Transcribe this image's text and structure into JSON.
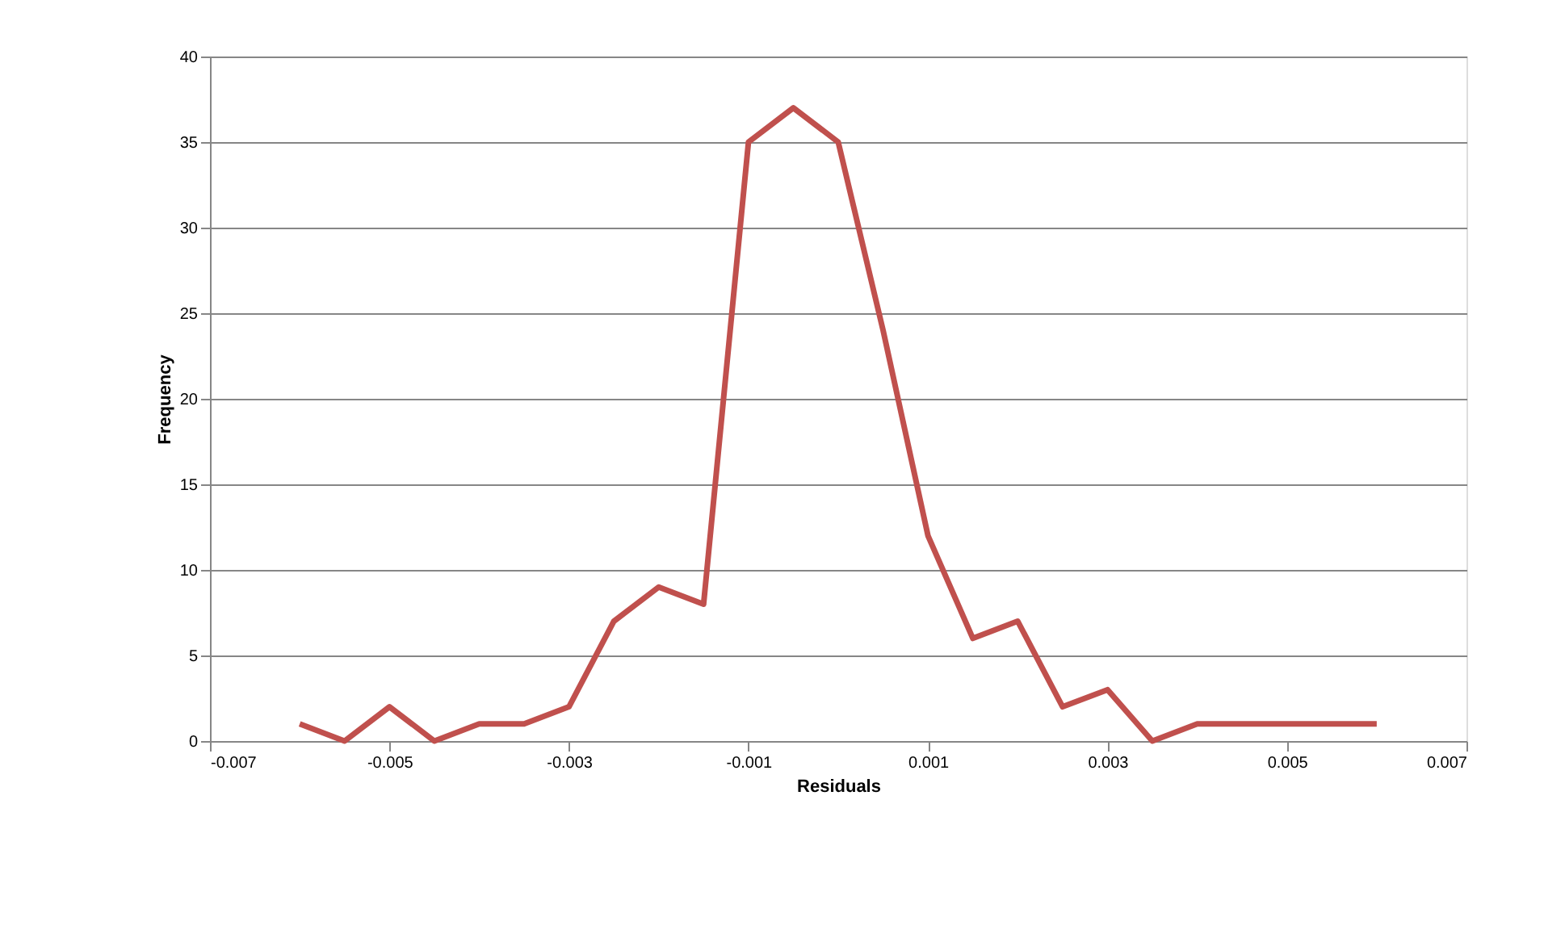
{
  "chart_data": {
    "type": "line",
    "xlabel": "Residuals",
    "ylabel": "Frequency",
    "x": [
      -0.006,
      -0.0055,
      -0.005,
      -0.0045,
      -0.004,
      -0.0035,
      -0.003,
      -0.0025,
      -0.002,
      -0.0015,
      -0.001,
      -0.0005,
      0,
      0.0005,
      0.001,
      0.0015,
      0.002,
      0.0025,
      0.003,
      0.0035,
      0.004,
      0.0045,
      0.005,
      0.0055,
      0.006
    ],
    "series": [
      {
        "color": "#c0504d",
        "values": [
          1,
          0,
          2,
          0,
          1,
          1,
          2,
          7,
          9,
          8,
          35,
          37,
          35,
          24,
          12,
          6,
          7,
          2,
          3,
          0,
          1,
          1,
          1,
          1,
          1
        ]
      }
    ],
    "xlim": [
      -0.007,
      0.007
    ],
    "xticks": [
      -0.007,
      -0.005,
      -0.003,
      -0.001,
      0.001,
      0.003,
      0.005,
      0.007
    ],
    "ylim": [
      0,
      40
    ],
    "yticks": [
      0,
      5,
      10,
      15,
      20,
      25,
      30,
      35,
      40
    ],
    "grid": "y",
    "marker": "none",
    "line_style": "solid"
  }
}
